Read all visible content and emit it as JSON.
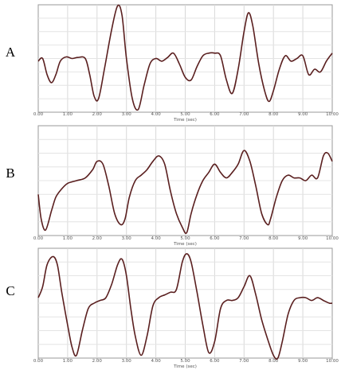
{
  "chart_data": [
    {
      "type": "line",
      "panel_label": "A",
      "xlabel": "Time (sec)",
      "ylabel": "",
      "xlim": [
        0,
        10
      ],
      "ylim": [
        -1,
        1
      ],
      "x_ticks": [
        "0.00",
        "1.00",
        "2.00",
        "3.00",
        "4.00",
        "5.00",
        "6.00",
        "7.00",
        "8.00",
        "9.00",
        "10.00"
      ],
      "grid": true,
      "line_color": "#5a1f1f",
      "series": [
        {
          "x": [
            0,
            0.15,
            0.3,
            0.45,
            0.6,
            0.75,
            0.95,
            1.15,
            1.35,
            1.6,
            1.75,
            1.9,
            2.05,
            2.25,
            2.5,
            2.7,
            2.85,
            3.0,
            3.2,
            3.4,
            3.6,
            3.8,
            4.0,
            4.2,
            4.4,
            4.6,
            4.8,
            5.0,
            5.2,
            5.4,
            5.6,
            5.8,
            6.0,
            6.2,
            6.4,
            6.6,
            6.8,
            7.0,
            7.15,
            7.3,
            7.5,
            7.7,
            7.85,
            8.0,
            8.2,
            8.4,
            8.6,
            8.8,
            9.0,
            9.2,
            9.4,
            9.6,
            9.8,
            10.0
          ],
          "y": [
            -0.05,
            0.0,
            -0.3,
            -0.45,
            -0.3,
            -0.05,
            0.03,
            0.0,
            0.02,
            0.0,
            -0.3,
            -0.7,
            -0.75,
            -0.2,
            0.55,
            0.98,
            0.8,
            0.0,
            -0.75,
            -0.95,
            -0.5,
            -0.1,
            0.0,
            -0.05,
            0.02,
            0.1,
            -0.1,
            -0.35,
            -0.4,
            -0.15,
            0.05,
            0.1,
            0.1,
            0.05,
            -0.4,
            -0.65,
            -0.2,
            0.5,
            0.85,
            0.6,
            -0.1,
            -0.6,
            -0.8,
            -0.6,
            -0.2,
            0.05,
            -0.05,
            0.0,
            0.05,
            -0.3,
            -0.2,
            -0.25,
            -0.05,
            0.1
          ]
        }
      ]
    },
    {
      "type": "line",
      "panel_label": "B",
      "xlabel": "Time (sec)",
      "ylabel": "",
      "xlim": [
        0,
        10
      ],
      "ylim": [
        -1,
        1
      ],
      "x_ticks": [
        "0.00",
        "1.00",
        "2.00",
        "3.00",
        "4.00",
        "5.00",
        "6.00",
        "7.00",
        "8.00",
        "9.00",
        "10.00"
      ],
      "grid": true,
      "line_color": "#5a1f1f",
      "series": [
        {
          "x": [
            0,
            0.1,
            0.25,
            0.45,
            0.6,
            0.8,
            1.0,
            1.3,
            1.6,
            1.85,
            2.0,
            2.2,
            2.4,
            2.6,
            2.8,
            2.95,
            3.1,
            3.3,
            3.5,
            3.7,
            3.9,
            4.1,
            4.3,
            4.5,
            4.7,
            4.9,
            5.05,
            5.2,
            5.4,
            5.6,
            5.8,
            6.0,
            6.2,
            6.4,
            6.6,
            6.8,
            7.0,
            7.2,
            7.4,
            7.6,
            7.8,
            7.9,
            8.1,
            8.3,
            8.5,
            8.7,
            8.9,
            9.1,
            9.3,
            9.5,
            9.7,
            9.85,
            10.0
          ],
          "y": [
            -0.25,
            -0.7,
            -0.9,
            -0.55,
            -0.3,
            -0.15,
            -0.05,
            0.0,
            0.05,
            0.2,
            0.35,
            0.3,
            -0.1,
            -0.6,
            -0.8,
            -0.7,
            -0.3,
            0.0,
            0.1,
            0.2,
            0.35,
            0.45,
            0.3,
            -0.2,
            -0.6,
            -0.85,
            -0.95,
            -0.6,
            -0.25,
            0.0,
            0.15,
            0.3,
            0.15,
            0.05,
            0.15,
            0.3,
            0.55,
            0.35,
            -0.1,
            -0.6,
            -0.8,
            -0.7,
            -0.3,
            0.0,
            0.1,
            0.05,
            0.05,
            0.0,
            0.1,
            0.05,
            0.45,
            0.5,
            0.35
          ]
        }
      ]
    },
    {
      "type": "line",
      "panel_label": "C",
      "xlabel": "Time (sec)",
      "ylabel": "",
      "xlim": [
        0,
        10
      ],
      "ylim": [
        -1,
        1
      ],
      "x_ticks": [
        "0.00",
        "1.00",
        "2.00",
        "3.00",
        "4.00",
        "5.00",
        "6.00",
        "7.00",
        "8.00",
        "9.00",
        "10.00"
      ],
      "grid": true,
      "line_color": "#5a1f1f",
      "series": [
        {
          "x": [
            0,
            0.15,
            0.3,
            0.5,
            0.65,
            0.8,
            1.0,
            1.15,
            1.3,
            1.5,
            1.7,
            1.9,
            2.1,
            2.3,
            2.5,
            2.7,
            2.85,
            3.0,
            3.15,
            3.3,
            3.5,
            3.7,
            3.9,
            4.1,
            4.3,
            4.5,
            4.7,
            4.9,
            5.05,
            5.2,
            5.4,
            5.6,
            5.8,
            6.0,
            6.2,
            6.4,
            6.6,
            6.8,
            7.0,
            7.2,
            7.4,
            7.6,
            7.8,
            8.0,
            8.15,
            8.3,
            8.5,
            8.7,
            8.9,
            9.1,
            9.3,
            9.5,
            9.7,
            9.9,
            10.0
          ],
          "y": [
            0.1,
            0.3,
            0.7,
            0.85,
            0.7,
            0.2,
            -0.4,
            -0.8,
            -0.95,
            -0.5,
            -0.1,
            0.0,
            0.05,
            0.1,
            0.35,
            0.7,
            0.8,
            0.5,
            -0.1,
            -0.6,
            -0.95,
            -0.6,
            -0.05,
            0.1,
            0.15,
            0.2,
            0.25,
            0.75,
            0.9,
            0.75,
            0.2,
            -0.4,
            -0.9,
            -0.7,
            -0.1,
            0.05,
            0.05,
            0.1,
            0.3,
            0.5,
            0.15,
            -0.3,
            -0.65,
            -0.95,
            -1.0,
            -0.7,
            -0.2,
            0.05,
            0.1,
            0.1,
            0.05,
            0.1,
            0.05,
            0.0,
            0.0
          ]
        }
      ]
    }
  ]
}
